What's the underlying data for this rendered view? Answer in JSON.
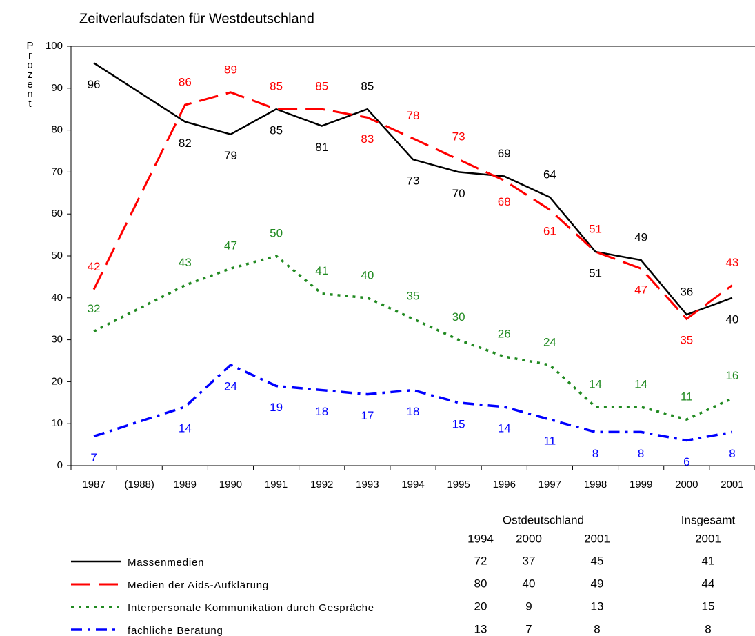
{
  "chart_data": {
    "type": "line",
    "title": "Zeitverlaufsdaten für Westdeutschland",
    "ylabel": "Prozent",
    "x": [
      1987,
      1989,
      1990,
      1991,
      1992,
      1993,
      1994,
      1995,
      1996,
      1997,
      1998,
      1999,
      2000,
      2001
    ],
    "xlim": [
      1986.5,
      2001.5
    ],
    "xticks": [
      1987,
      {
        "value": 1988,
        "label": "(1988)"
      },
      1989,
      1990,
      1991,
      1992,
      1993,
      1994,
      1995,
      1996,
      1997,
      1998,
      1999,
      2000,
      2001
    ],
    "ylim": [
      0,
      100
    ],
    "yticks": [
      0,
      10,
      20,
      30,
      40,
      50,
      60,
      70,
      80,
      90,
      100
    ],
    "series": [
      {
        "name": "Massenmedien",
        "color": "#000000",
        "values": [
          96,
          82,
          79,
          85,
          81,
          85,
          73,
          70,
          69,
          64,
          51,
          49,
          36,
          40
        ]
      },
      {
        "name": "Medien der Aids-Aufklärung",
        "color": "#ff0000",
        "values": [
          42,
          86,
          89,
          85,
          85,
          83,
          78,
          73,
          68,
          61,
          51,
          47,
          35,
          43
        ]
      },
      {
        "name": "Interpersonale Kommunikation durch Gespräche",
        "color": "#218a21",
        "values": [
          32,
          43,
          47,
          50,
          41,
          40,
          35,
          30,
          26,
          24,
          14,
          14,
          11,
          16
        ]
      },
      {
        "name": "fachliche Beratung",
        "color": "#0000ff",
        "values": [
          7,
          14,
          24,
          19,
          18,
          17,
          18,
          15,
          14,
          11,
          8,
          8,
          6,
          8
        ]
      }
    ],
    "table": {
      "groups": [
        "Ostdeutschland",
        "Insgesamt"
      ],
      "years": [
        "1994",
        "2000",
        "2001",
        "2001"
      ],
      "rows": [
        [
          72,
          37,
          45,
          41
        ],
        [
          80,
          40,
          49,
          44
        ],
        [
          20,
          9,
          13,
          15
        ],
        [
          13,
          7,
          8,
          8
        ]
      ]
    }
  }
}
